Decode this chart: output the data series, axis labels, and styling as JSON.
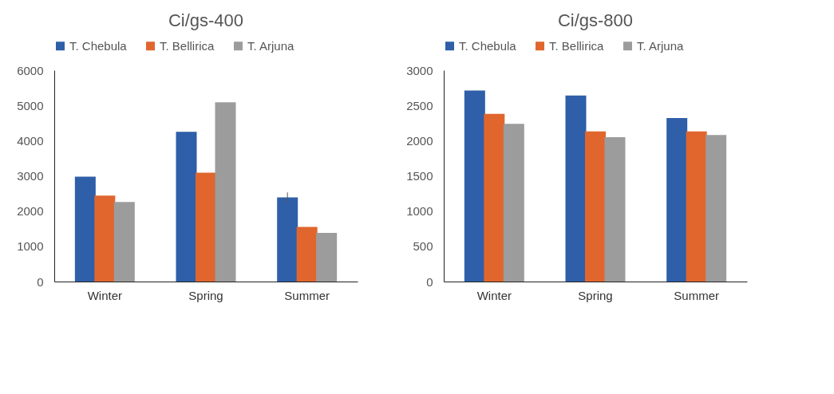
{
  "chart_data": [
    {
      "type": "bar",
      "title": "Ci/gs-400",
      "categories": [
        "Winter",
        "Spring",
        "Summer"
      ],
      "legend": "top",
      "grid": false,
      "ylim": [
        0,
        6000
      ],
      "yticks": [
        0,
        1000,
        2000,
        3000,
        4000,
        5000,
        6000
      ],
      "series": [
        {
          "name": "T. Chebula",
          "color": "#2e5fa8",
          "values": [
            2980,
            4250,
            2390
          ],
          "errors": [
            null,
            null,
            140
          ]
        },
        {
          "name": "T. Bellirica",
          "color": "#e0662e",
          "values": [
            2440,
            3090,
            1550
          ]
        },
        {
          "name": "T. Arjuna",
          "color": "#9c9c9c",
          "values": [
            2260,
            5090,
            1380
          ]
        }
      ]
    },
    {
      "type": "bar",
      "title": "Ci/gs-800",
      "categories": [
        "Winter",
        "Spring",
        "Summer"
      ],
      "legend": "top",
      "grid": false,
      "ylim": [
        0,
        3000
      ],
      "yticks": [
        0,
        500,
        1000,
        1500,
        2000,
        2500,
        3000
      ],
      "series": [
        {
          "name": "T. Chebula",
          "color": "#2e5fa8",
          "values": [
            2710,
            2640,
            2320
          ]
        },
        {
          "name": "T. Bellirica",
          "color": "#e0662e",
          "values": [
            2380,
            2130,
            2130
          ]
        },
        {
          "name": "T. Arjuna",
          "color": "#9c9c9c",
          "values": [
            2240,
            2050,
            2080
          ]
        }
      ]
    }
  ]
}
